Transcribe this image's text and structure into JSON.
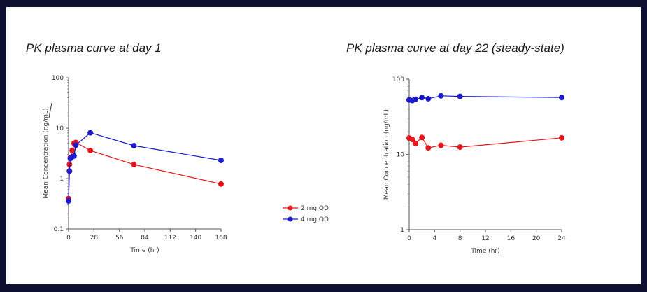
{
  "slide": {
    "left_title": "PK plasma curve at day 1",
    "right_title": "PK plasma curve at day 22 (steady-state)",
    "colors": {
      "background": "#0d1030",
      "panel": "#ffffff"
    }
  },
  "chart_data": [
    {
      "type": "line",
      "title": "PK plasma curve at day 1",
      "xlabel": "Time (hr)",
      "ylabel": "Mean Concentration (ng/mL)",
      "yscale": "log",
      "xlim": [
        0,
        168
      ],
      "ylim": [
        0.1,
        100
      ],
      "xticks": [
        0,
        28,
        56,
        84,
        112,
        140,
        168
      ],
      "yticks": [
        0.1,
        1,
        10,
        100
      ],
      "ytick_labels": [
        "0.1",
        "1",
        "10",
        "100"
      ],
      "grid": false,
      "series": [
        {
          "name": "2 mg QD",
          "color": "#e8151b",
          "x": [
            0,
            1,
            2,
            4,
            6,
            8,
            24,
            72,
            168
          ],
          "y": [
            0.4,
            1.9,
            2.6,
            3.6,
            5.0,
            5.2,
            3.6,
            1.9,
            0.78
          ]
        },
        {
          "name": "4 mg QD",
          "color": "#1a1acc",
          "x": [
            0,
            1,
            2,
            4,
            6,
            8,
            24,
            72,
            168
          ],
          "y": [
            0.36,
            1.4,
            2.5,
            2.7,
            2.8,
            4.6,
            8.1,
            4.5,
            2.3
          ]
        }
      ]
    },
    {
      "type": "line",
      "title": "PK plasma curve at day 22 (steady-state)",
      "xlabel": "Time (hr)",
      "ylabel": "Mean Concentration (ng/mL)",
      "yscale": "log",
      "xlim": [
        0,
        24
      ],
      "ylim": [
        1,
        100
      ],
      "xticks": [
        0,
        4,
        8,
        12,
        16,
        20,
        24
      ],
      "yticks": [
        1,
        10,
        100
      ],
      "ytick_labels": [
        "1",
        "10",
        "100"
      ],
      "grid": false,
      "series": [
        {
          "name": "2 mg QD",
          "color": "#e8151b",
          "x": [
            0,
            0.5,
            1,
            2,
            3,
            5,
            8,
            24
          ],
          "y": [
            16.5,
            15.8,
            14.0,
            16.8,
            12.2,
            13.2,
            12.5,
            16.6
          ]
        },
        {
          "name": "4 mg QD",
          "color": "#1a1acc",
          "x": [
            0,
            0.5,
            1,
            2,
            3,
            5,
            8,
            24
          ],
          "y": [
            53,
            52,
            54,
            57,
            55,
            60,
            59,
            57
          ]
        }
      ]
    }
  ],
  "legend": {
    "placement": "center between charts",
    "entries": [
      {
        "label": "2 mg QD",
        "color": "#e8151b"
      },
      {
        "label": "4 mg QD",
        "color": "#1a1acc"
      }
    ]
  }
}
